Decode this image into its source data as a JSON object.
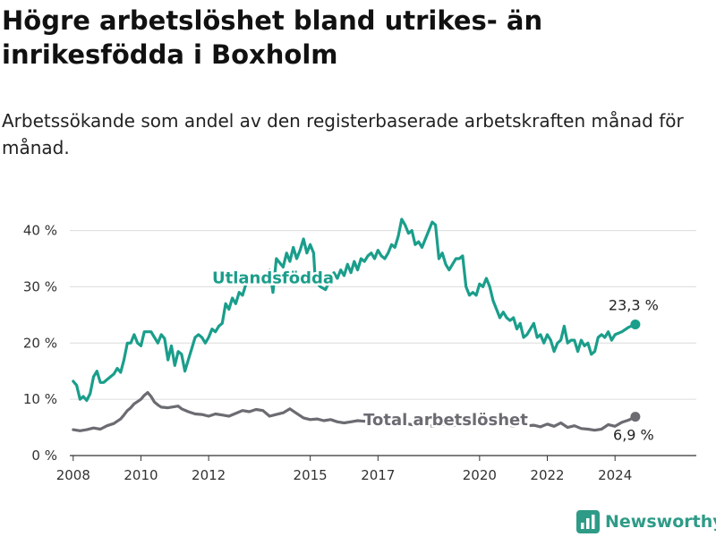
{
  "header": {
    "title": "Högre arbetslöshet bland utrikes- än inrikesfödda i Boxholm",
    "subtitle": "Arbetssökande som andel av den registerbaserade arbetskraften månad för månad."
  },
  "brand": {
    "name": "Newsworthy",
    "icon": "bar-chart-icon",
    "color": "#2e9b87"
  },
  "chart_data": {
    "type": "line",
    "x_range": [
      2007.9,
      2026.4
    ],
    "ylim": [
      0,
      42
    ],
    "y_ticks": [
      0,
      10,
      20,
      30,
      40
    ],
    "y_tick_labels": [
      "0 %",
      "10 %",
      "20 %",
      "30 %",
      "40 %"
    ],
    "x_ticks": [
      2008,
      2010,
      2012,
      2015,
      2017,
      2020,
      2022,
      2024
    ],
    "x_tick_labels": [
      "2008",
      "2010",
      "2012",
      "2015",
      "2017",
      "2020",
      "2022",
      "2024"
    ],
    "grid": "horizontal",
    "series": [
      {
        "name": "Utlandsfödda",
        "color": "#1a9e8b",
        "end_label": "23,3 %",
        "points": [
          [
            2008.0,
            13.2
          ],
          [
            2008.1,
            12.5
          ],
          [
            2008.2,
            10.0
          ],
          [
            2008.3,
            10.5
          ],
          [
            2008.4,
            9.8
          ],
          [
            2008.5,
            11.0
          ],
          [
            2008.6,
            14.0
          ],
          [
            2008.7,
            15.0
          ],
          [
            2008.8,
            13.0
          ],
          [
            2008.9,
            13.0
          ],
          [
            2009.0,
            13.5
          ],
          [
            2009.1,
            14.0
          ],
          [
            2009.2,
            14.5
          ],
          [
            2009.3,
            15.5
          ],
          [
            2009.4,
            14.8
          ],
          [
            2009.5,
            17.0
          ],
          [
            2009.6,
            20.0
          ],
          [
            2009.7,
            20.0
          ],
          [
            2009.8,
            21.5
          ],
          [
            2009.9,
            20.0
          ],
          [
            2010.0,
            19.5
          ],
          [
            2010.1,
            22.0
          ],
          [
            2010.2,
            22.0
          ],
          [
            2010.3,
            22.0
          ],
          [
            2010.4,
            21.0
          ],
          [
            2010.5,
            20.0
          ],
          [
            2010.6,
            21.5
          ],
          [
            2010.7,
            20.8
          ],
          [
            2010.8,
            17.0
          ],
          [
            2010.9,
            19.5
          ],
          [
            2011.0,
            16.0
          ],
          [
            2011.1,
            18.5
          ],
          [
            2011.2,
            18.0
          ],
          [
            2011.3,
            15.0
          ],
          [
            2011.4,
            17.0
          ],
          [
            2011.5,
            19.0
          ],
          [
            2011.6,
            21.0
          ],
          [
            2011.7,
            21.5
          ],
          [
            2011.8,
            21.0
          ],
          [
            2011.9,
            20.0
          ],
          [
            2012.0,
            21.0
          ],
          [
            2012.1,
            22.5
          ],
          [
            2012.2,
            22.0
          ],
          [
            2012.3,
            23.0
          ],
          [
            2012.4,
            23.5
          ],
          [
            2012.5,
            27.0
          ],
          [
            2012.6,
            26.0
          ],
          [
            2012.7,
            28.0
          ],
          [
            2012.8,
            27.0
          ],
          [
            2012.9,
            29.0
          ],
          [
            2013.0,
            28.5
          ],
          [
            2013.1,
            30.5
          ],
          [
            2013.3,
            32.0
          ],
          [
            2013.6,
            31.5
          ],
          [
            2013.8,
            33.0
          ],
          [
            2013.9,
            29.0
          ],
          [
            2014.0,
            35.0
          ],
          [
            2014.2,
            33.5
          ],
          [
            2014.3,
            36.0
          ],
          [
            2014.4,
            34.5
          ],
          [
            2014.5,
            37.0
          ],
          [
            2014.6,
            35.0
          ],
          [
            2014.7,
            36.5
          ],
          [
            2014.8,
            38.5
          ],
          [
            2014.9,
            36.0
          ],
          [
            2015.0,
            37.5
          ],
          [
            2015.1,
            36.0
          ],
          [
            2015.15,
            31.0
          ],
          [
            2015.3,
            30.0
          ],
          [
            2015.45,
            29.5
          ],
          [
            2015.6,
            31.5
          ],
          [
            2015.7,
            32.5
          ],
          [
            2015.8,
            31.5
          ],
          [
            2015.9,
            33.0
          ],
          [
            2016.0,
            32.0
          ],
          [
            2016.1,
            34.0
          ],
          [
            2016.2,
            32.5
          ],
          [
            2016.3,
            34.5
          ],
          [
            2016.4,
            33.0
          ],
          [
            2016.5,
            35.0
          ],
          [
            2016.6,
            34.5
          ],
          [
            2016.7,
            35.5
          ],
          [
            2016.8,
            36.0
          ],
          [
            2016.9,
            35.0
          ],
          [
            2017.0,
            36.5
          ],
          [
            2017.1,
            35.5
          ],
          [
            2017.2,
            35.0
          ],
          [
            2017.3,
            36.0
          ],
          [
            2017.4,
            37.5
          ],
          [
            2017.5,
            37.0
          ],
          [
            2017.6,
            39.0
          ],
          [
            2017.7,
            42.0
          ],
          [
            2017.8,
            41.0
          ],
          [
            2017.9,
            39.5
          ],
          [
            2018.0,
            40.0
          ],
          [
            2018.1,
            37.5
          ],
          [
            2018.2,
            38.0
          ],
          [
            2018.3,
            37.0
          ],
          [
            2018.4,
            38.5
          ],
          [
            2018.5,
            40.0
          ],
          [
            2018.6,
            41.5
          ],
          [
            2018.7,
            41.0
          ],
          [
            2018.8,
            35.0
          ],
          [
            2018.9,
            36.0
          ],
          [
            2019.0,
            34.0
          ],
          [
            2019.1,
            33.0
          ],
          [
            2019.2,
            34.0
          ],
          [
            2019.3,
            35.0
          ],
          [
            2019.4,
            35.0
          ],
          [
            2019.5,
            35.5
          ],
          [
            2019.6,
            30.0
          ],
          [
            2019.7,
            28.5
          ],
          [
            2019.8,
            29.0
          ],
          [
            2019.9,
            28.5
          ],
          [
            2020.0,
            30.5
          ],
          [
            2020.1,
            30.0
          ],
          [
            2020.2,
            31.5
          ],
          [
            2020.3,
            30.0
          ],
          [
            2020.4,
            27.5
          ],
          [
            2020.5,
            26.0
          ],
          [
            2020.6,
            24.5
          ],
          [
            2020.7,
            25.5
          ],
          [
            2020.8,
            24.5
          ],
          [
            2020.9,
            24.0
          ],
          [
            2021.0,
            24.5
          ],
          [
            2021.1,
            22.5
          ],
          [
            2021.2,
            23.5
          ],
          [
            2021.3,
            21.0
          ],
          [
            2021.4,
            21.5
          ],
          [
            2021.5,
            22.5
          ],
          [
            2021.6,
            23.5
          ],
          [
            2021.7,
            21.0
          ],
          [
            2021.8,
            21.5
          ],
          [
            2021.9,
            20.0
          ],
          [
            2022.0,
            21.5
          ],
          [
            2022.1,
            20.5
          ],
          [
            2022.2,
            18.5
          ],
          [
            2022.3,
            20.0
          ],
          [
            2022.4,
            20.5
          ],
          [
            2022.5,
            23.0
          ],
          [
            2022.6,
            20.0
          ],
          [
            2022.7,
            20.5
          ],
          [
            2022.8,
            20.5
          ],
          [
            2022.9,
            18.5
          ],
          [
            2023.0,
            20.5
          ],
          [
            2023.1,
            19.5
          ],
          [
            2023.2,
            20.0
          ],
          [
            2023.3,
            18.0
          ],
          [
            2023.4,
            18.5
          ],
          [
            2023.5,
            21.0
          ],
          [
            2023.6,
            21.5
          ],
          [
            2023.7,
            21.0
          ],
          [
            2023.8,
            22.0
          ],
          [
            2023.9,
            20.5
          ],
          [
            2024.0,
            21.5
          ],
          [
            2024.2,
            22.0
          ],
          [
            2024.4,
            22.8
          ],
          [
            2024.6,
            23.3
          ]
        ]
      },
      {
        "name": "Total arbetslöshet",
        "color": "#6b6b72",
        "end_label": "6,9 %",
        "points": [
          [
            2008.0,
            4.6
          ],
          [
            2008.2,
            4.4
          ],
          [
            2008.4,
            4.6
          ],
          [
            2008.6,
            4.9
          ],
          [
            2008.8,
            4.7
          ],
          [
            2009.0,
            5.3
          ],
          [
            2009.2,
            5.7
          ],
          [
            2009.4,
            6.5
          ],
          [
            2009.5,
            7.2
          ],
          [
            2009.6,
            8.0
          ],
          [
            2009.7,
            8.5
          ],
          [
            2009.8,
            9.2
          ],
          [
            2009.9,
            9.6
          ],
          [
            2010.0,
            10.0
          ],
          [
            2010.1,
            10.7
          ],
          [
            2010.2,
            11.2
          ],
          [
            2010.3,
            10.5
          ],
          [
            2010.4,
            9.5
          ],
          [
            2010.5,
            9.0
          ],
          [
            2010.6,
            8.6
          ],
          [
            2010.8,
            8.5
          ],
          [
            2011.0,
            8.7
          ],
          [
            2011.1,
            8.8
          ],
          [
            2011.2,
            8.3
          ],
          [
            2011.4,
            7.8
          ],
          [
            2011.6,
            7.4
          ],
          [
            2011.8,
            7.3
          ],
          [
            2012.0,
            7.0
          ],
          [
            2012.2,
            7.4
          ],
          [
            2012.4,
            7.2
          ],
          [
            2012.6,
            7.0
          ],
          [
            2012.8,
            7.5
          ],
          [
            2013.0,
            8.0
          ],
          [
            2013.2,
            7.8
          ],
          [
            2013.4,
            8.2
          ],
          [
            2013.6,
            8.0
          ],
          [
            2013.8,
            7.0
          ],
          [
            2014.0,
            7.3
          ],
          [
            2014.2,
            7.6
          ],
          [
            2014.4,
            8.3
          ],
          [
            2014.6,
            7.5
          ],
          [
            2014.8,
            6.7
          ],
          [
            2015.0,
            6.4
          ],
          [
            2015.2,
            6.5
          ],
          [
            2015.4,
            6.2
          ],
          [
            2015.6,
            6.4
          ],
          [
            2015.8,
            6.0
          ],
          [
            2016.0,
            5.8
          ],
          [
            2016.2,
            6.0
          ],
          [
            2016.4,
            6.2
          ],
          [
            2016.6,
            6.1
          ],
          [
            2016.8,
            6.3
          ],
          [
            2017.0,
            6.0
          ],
          [
            2017.2,
            5.5
          ],
          [
            2017.4,
            5.6
          ],
          [
            2017.6,
            5.4
          ],
          [
            2017.8,
            5.7
          ],
          [
            2018.0,
            5.5
          ],
          [
            2018.2,
            5.3
          ],
          [
            2018.4,
            5.5
          ],
          [
            2018.6,
            5.2
          ],
          [
            2018.8,
            5.4
          ],
          [
            2019.0,
            5.6
          ],
          [
            2019.2,
            5.3
          ],
          [
            2019.4,
            5.5
          ],
          [
            2019.6,
            5.7
          ],
          [
            2019.8,
            5.4
          ],
          [
            2020.0,
            5.6
          ],
          [
            2020.2,
            5.8
          ],
          [
            2020.4,
            5.5
          ],
          [
            2020.6,
            5.9
          ],
          [
            2020.8,
            5.6
          ],
          [
            2021.0,
            5.2
          ],
          [
            2021.2,
            5.6
          ],
          [
            2021.4,
            5.3
          ],
          [
            2021.6,
            5.4
          ],
          [
            2021.8,
            5.1
          ],
          [
            2022.0,
            5.6
          ],
          [
            2022.2,
            5.2
          ],
          [
            2022.4,
            5.8
          ],
          [
            2022.6,
            5.0
          ],
          [
            2022.8,
            5.3
          ],
          [
            2023.0,
            4.8
          ],
          [
            2023.2,
            4.7
          ],
          [
            2023.4,
            4.5
          ],
          [
            2023.6,
            4.7
          ],
          [
            2023.8,
            5.5
          ],
          [
            2024.0,
            5.2
          ],
          [
            2024.2,
            5.9
          ],
          [
            2024.4,
            6.3
          ],
          [
            2024.6,
            6.9
          ]
        ]
      }
    ]
  }
}
